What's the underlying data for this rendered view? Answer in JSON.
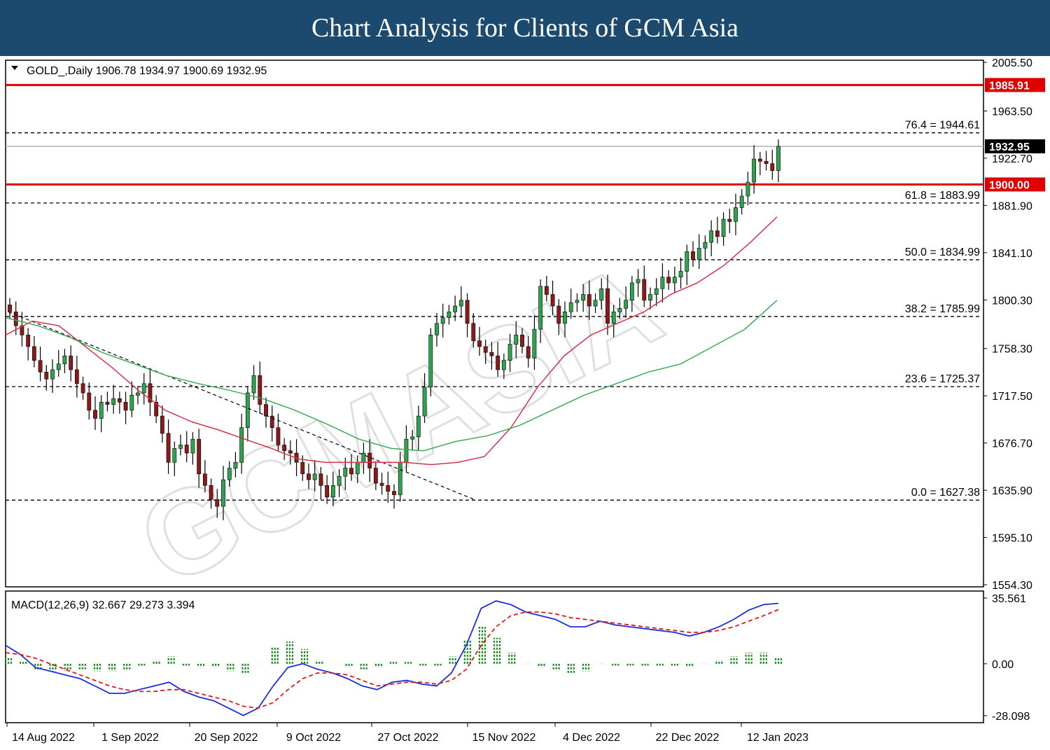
{
  "banner": {
    "title": "Chart Analysis for Clients of GCM Asia"
  },
  "chart_data": {
    "type": "candlestick",
    "symbol_info": "GOLD_,Daily  1906.78 1934.97 1900.69 1932.95",
    "price_axis": {
      "ticks": [
        "2005.50",
        "1963.50",
        "1922.70",
        "1881.90",
        "1841.10",
        "1800.30",
        "1758.30",
        "1717.50",
        "1676.70",
        "1635.90",
        "1595.10",
        "1554.30"
      ],
      "min": 1554.3,
      "max": 2005.5
    },
    "date_labels": [
      "14 Aug 2022",
      "1 Sep 2022",
      "20 Sep 2022",
      "9 Oct 2022",
      "27 Oct 2022",
      "15 Nov 2022",
      "4 Dec 2022",
      "22 Dec 2022",
      "12 Jan 2023"
    ],
    "fib_levels": [
      {
        "label": "76.4 = 1944.61",
        "value": 1944.61
      },
      {
        "label": "61.8 = 1883.99",
        "value": 1883.99
      },
      {
        "label": "50.0 = 1834.99",
        "value": 1834.99
      },
      {
        "label": "38.2 = 1785.99",
        "value": 1785.99
      },
      {
        "label": "23.6 = 1725.37",
        "value": 1725.37
      },
      {
        "label": "0.0 = 1627.38",
        "value": 1627.38
      }
    ],
    "resistance": {
      "label": "1985.91",
      "value": 1985.91,
      "color": "#e00000"
    },
    "support": {
      "label": "1900.00",
      "value": 1900.0,
      "color": "#e00000"
    },
    "last_price": {
      "label": "1932.95",
      "value": 1932.95
    },
    "closes": [
      1790,
      1778,
      1770,
      1760,
      1748,
      1738,
      1732,
      1740,
      1745,
      1752,
      1740,
      1728,
      1720,
      1705,
      1698,
      1712,
      1710,
      1715,
      1712,
      1705,
      1718,
      1720,
      1728,
      1712,
      1700,
      1685,
      1660,
      1672,
      1675,
      1668,
      1680,
      1650,
      1640,
      1628,
      1622,
      1645,
      1655,
      1660,
      1690,
      1720,
      1735,
      1710,
      1700,
      1690,
      1675,
      1670,
      1668,
      1660,
      1650,
      1645,
      1650,
      1640,
      1630,
      1640,
      1648,
      1655,
      1650,
      1660,
      1668,
      1655,
      1642,
      1640,
      1635,
      1632,
      1660,
      1680,
      1682,
      1700,
      1725,
      1770,
      1780,
      1785,
      1790,
      1795,
      1800,
      1780,
      1765,
      1760,
      1755,
      1752,
      1740,
      1748,
      1762,
      1770,
      1760,
      1750,
      1775,
      1812,
      1805,
      1795,
      1780,
      1790,
      1798,
      1800,
      1805,
      1795,
      1800,
      1810,
      1780,
      1790,
      1793,
      1800,
      1815,
      1818,
      1800,
      1805,
      1810,
      1820,
      1815,
      1820,
      1825,
      1842,
      1835,
      1845,
      1850,
      1860,
      1855,
      1870,
      1868,
      1880,
      1890,
      1902,
      1922,
      1920,
      1918,
      1912,
      1932.95
    ],
    "ma_fast": [
      1770,
      1782,
      1778,
      1760,
      1742,
      1722,
      1705,
      1695,
      1688,
      1680,
      1672,
      1663,
      1660,
      1660,
      1660,
      1660,
      1658,
      1660,
      1665,
      1690,
      1725,
      1752,
      1770,
      1780,
      1790,
      1805,
      1815,
      1830,
      1850,
      1872
    ],
    "ma_slow": [
      1785,
      1778,
      1768,
      1755,
      1745,
      1735,
      1728,
      1722,
      1715,
      1705,
      1693,
      1680,
      1672,
      1670,
      1678,
      1683,
      1692,
      1705,
      1718,
      1728,
      1738,
      1745,
      1760,
      1775,
      1800
    ],
    "macd_axis": {
      "ticks": [
        "35.561",
        "0.00",
        "-28.098"
      ],
      "min": -28.098,
      "max": 35.561
    },
    "macd_info": "MACD(12,26,9) 32.667 29.273 3.394",
    "macd": [
      10,
      5,
      -2,
      -4,
      -6,
      -8,
      -12,
      -16,
      -16,
      -14,
      -12,
      -10,
      -15,
      -18,
      -20,
      -24,
      -28,
      -24,
      -12,
      -2,
      0,
      -3,
      -5,
      -8,
      -12,
      -14,
      -10,
      -9,
      -11,
      -12,
      -5,
      10,
      30,
      34,
      32,
      28,
      26,
      24,
      20,
      20,
      23,
      21,
      20,
      19,
      18,
      17,
      15,
      17,
      20,
      24,
      29,
      32,
      32.667
    ],
    "macd_signal": [
      6,
      5,
      3,
      0,
      -3,
      -6,
      -9,
      -12,
      -14,
      -15,
      -15,
      -14,
      -14,
      -16,
      -18,
      -20,
      -23,
      -24,
      -21,
      -14,
      -8,
      -5,
      -5,
      -6,
      -9,
      -12,
      -11,
      -10,
      -10,
      -11,
      -9,
      -3,
      10,
      20,
      26,
      28,
      28,
      27,
      25,
      24,
      23,
      22,
      21,
      20,
      19,
      18,
      17,
      17,
      18,
      20,
      23,
      26,
      29.273
    ],
    "macd_hist": [
      3,
      1,
      -3,
      -4,
      -4,
      -3,
      -4,
      -4,
      -3,
      -1,
      2,
      4,
      -1,
      -2,
      -2,
      -4,
      -5,
      0,
      9,
      12,
      8,
      2,
      0,
      -2,
      -3,
      -2,
      1,
      1,
      -1,
      -1,
      4,
      13,
      20,
      14,
      6,
      0,
      -2,
      -3,
      -5,
      -4,
      0,
      -1,
      -1,
      -1,
      -1,
      -1,
      -2,
      0,
      2,
      4,
      6,
      6,
      3.394
    ]
  }
}
